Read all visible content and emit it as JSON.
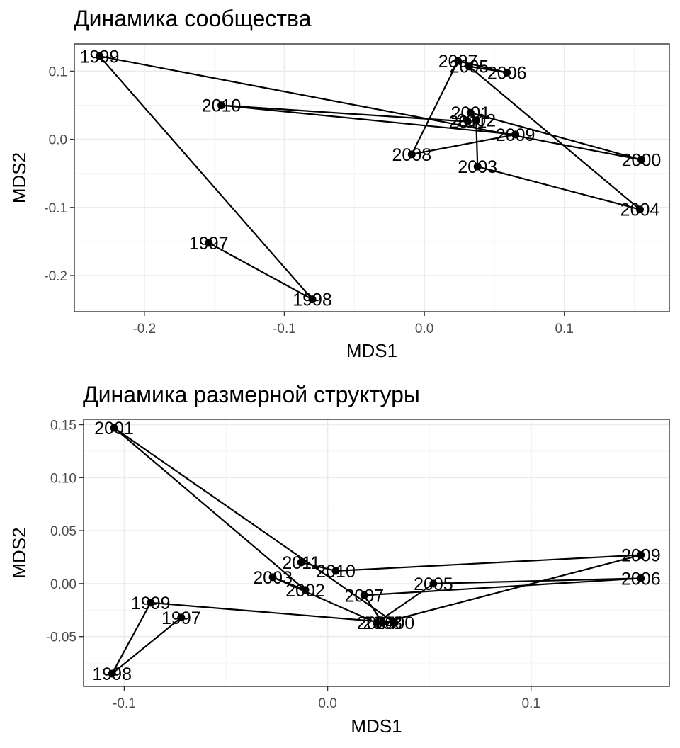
{
  "chart_data": [
    {
      "type": "scatter",
      "title": "Динамика сообщества",
      "xlabel": "MDS1",
      "ylabel": "MDS2",
      "xlim": [
        -0.25,
        0.175
      ],
      "ylim": [
        -0.253,
        0.14
      ],
      "xticks": [
        -0.2,
        -0.1,
        0.0,
        0.1
      ],
      "xtick_labels": [
        "-0.2",
        "-0.1",
        "0.0",
        "0.1"
      ],
      "yticks": [
        -0.2,
        -0.1,
        0.0,
        0.1
      ],
      "ytick_labels": [
        "-0.2",
        "-0.1",
        "0.0",
        "0.1"
      ],
      "grid": true,
      "connected": true,
      "points": [
        {
          "label": "1997",
          "x": -0.154,
          "y": -0.152
        },
        {
          "label": "1998",
          "x": -0.08,
          "y": -0.235
        },
        {
          "label": "1999",
          "x": -0.232,
          "y": 0.122
        },
        {
          "label": "2000",
          "x": 0.155,
          "y": -0.03
        },
        {
          "label": "2001",
          "x": 0.033,
          "y": 0.039
        },
        {
          "label": "2002",
          "x": 0.037,
          "y": 0.028
        },
        {
          "label": "2003",
          "x": 0.038,
          "y": -0.04
        },
        {
          "label": "2004",
          "x": 0.154,
          "y": -0.103
        },
        {
          "label": "2005",
          "x": 0.032,
          "y": 0.107
        },
        {
          "label": "2006",
          "x": 0.059,
          "y": 0.098
        },
        {
          "label": "2007",
          "x": 0.024,
          "y": 0.115
        },
        {
          "label": "2008",
          "x": -0.009,
          "y": -0.022
        },
        {
          "label": "2009",
          "x": 0.065,
          "y": 0.007
        },
        {
          "label": "2010",
          "x": -0.145,
          "y": 0.05
        },
        {
          "label": "2011",
          "x": 0.031,
          "y": 0.026
        }
      ],
      "path_order": [
        "1997",
        "1998",
        "1999",
        "2000",
        "2001",
        "2002",
        "2003",
        "2004",
        "2005",
        "2006",
        "2007",
        "2008",
        "2009",
        "2010",
        "2011"
      ]
    },
    {
      "type": "scatter",
      "title": "Динамика размерной структуры",
      "xlabel": "MDS1",
      "ylabel": "MDS2",
      "xlim": [
        -0.12,
        0.168
      ],
      "ylim": [
        -0.097,
        0.155
      ],
      "xticks": [
        -0.1,
        0.0,
        0.1
      ],
      "xtick_labels": [
        "-0.1",
        "0.0",
        "0.1"
      ],
      "yticks": [
        -0.05,
        0.0,
        0.05,
        0.1,
        0.15
      ],
      "ytick_labels": [
        "-0.05",
        "0.00",
        "0.05",
        "0.10",
        "0.15"
      ],
      "grid": true,
      "connected": true,
      "points": [
        {
          "label": "1997",
          "x": -0.072,
          "y": -0.032
        },
        {
          "label": "1998",
          "x": -0.106,
          "y": -0.085
        },
        {
          "label": "1999",
          "x": -0.087,
          "y": -0.018
        },
        {
          "label": "2000",
          "x": 0.033,
          "y": -0.037
        },
        {
          "label": "2001",
          "x": -0.105,
          "y": 0.147
        },
        {
          "label": "2002",
          "x": -0.011,
          "y": -0.006
        },
        {
          "label": "2003",
          "x": -0.027,
          "y": 0.006
        },
        {
          "label": "2004",
          "x": 0.024,
          "y": -0.037
        },
        {
          "label": "2005",
          "x": 0.052,
          "y": 0.0
        },
        {
          "label": "2006",
          "x": 0.154,
          "y": 0.005
        },
        {
          "label": "2007",
          "x": 0.018,
          "y": -0.011
        },
        {
          "label": "2008",
          "x": 0.027,
          "y": -0.037
        },
        {
          "label": "2009",
          "x": 0.154,
          "y": 0.027
        },
        {
          "label": "2010",
          "x": 0.004,
          "y": 0.012
        },
        {
          "label": "2011",
          "x": -0.013,
          "y": 0.02
        }
      ],
      "path_order": [
        "1997",
        "1998",
        "1999",
        "2000",
        "2001",
        "2002",
        "2003",
        "2004",
        "2005",
        "2006",
        "2007",
        "2008",
        "2009",
        "2010",
        "2011"
      ]
    }
  ]
}
